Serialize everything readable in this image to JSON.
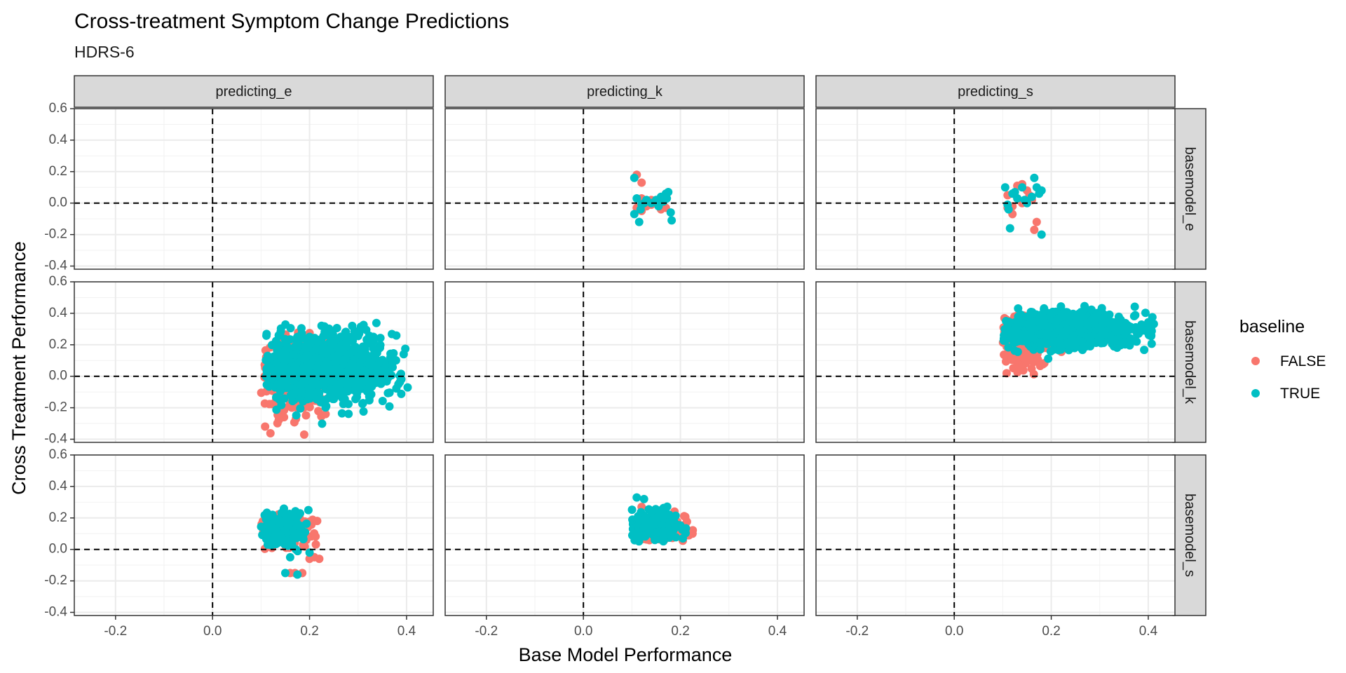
{
  "chart_data": {
    "type": "scatter",
    "title": "Cross-treatment Symptom Change Predictions",
    "subtitle": "HDRS-6",
    "xlabel": "Base Model Performance",
    "ylabel": "Cross Treatment Performance",
    "xlim": [
      -0.285,
      0.455
    ],
    "ylim": [
      -0.42,
      0.6
    ],
    "x_ticks": [
      -0.2,
      0.0,
      0.2,
      0.4
    ],
    "x_tick_labels": [
      "-0.2",
      "0.0",
      "0.2",
      "0.4"
    ],
    "y_ticks": [
      -0.4,
      -0.2,
      0.0,
      0.2,
      0.4,
      0.6
    ],
    "y_tick_labels": [
      "-0.4",
      "-0.2",
      "0.0",
      "0.2",
      "0.4",
      "0.6"
    ],
    "grid": true,
    "reference_lines": {
      "x": 0.0,
      "y": 0.0,
      "style": "dashed"
    },
    "facet_cols": [
      "predicting_e",
      "predicting_k",
      "predicting_s"
    ],
    "facet_rows": [
      "basemodel_e",
      "basemodel_k",
      "basemodel_s"
    ],
    "legend": {
      "title": "baseline",
      "position": "right",
      "entries": [
        {
          "label": "FALSE",
          "color": "#F8766D"
        },
        {
          "label": "TRUE",
          "color": "#00BFC4"
        }
      ]
    },
    "panels": [
      {
        "row": "basemodel_e",
        "col": "predicting_e",
        "points": []
      },
      {
        "row": "basemodel_e",
        "col": "predicting_k",
        "points": [
          [
            0.11,
            0.18,
            "FALSE"
          ],
          [
            0.12,
            0.13,
            "FALSE"
          ],
          [
            0.12,
            0.03,
            "FALSE"
          ],
          [
            0.13,
            0.01,
            "FALSE"
          ],
          [
            0.14,
            -0.01,
            "FALSE"
          ],
          [
            0.15,
            0.0,
            "FALSE"
          ],
          [
            0.16,
            -0.04,
            "FALSE"
          ],
          [
            0.13,
            -0.02,
            "FALSE"
          ],
          [
            0.11,
            -0.03,
            "FALSE"
          ],
          [
            0.17,
            -0.03,
            "FALSE"
          ],
          [
            0.14,
            0.02,
            "FALSE"
          ],
          [
            0.12,
            -0.05,
            "FALSE"
          ],
          [
            0.105,
            0.16,
            "TRUE"
          ],
          [
            0.11,
            0.03,
            "TRUE"
          ],
          [
            0.12,
            -0.01,
            "TRUE"
          ],
          [
            0.13,
            0.02,
            "TRUE"
          ],
          [
            0.14,
            0.0,
            "TRUE"
          ],
          [
            0.15,
            0.02,
            "TRUE"
          ],
          [
            0.16,
            0.04,
            "TRUE"
          ],
          [
            0.17,
            0.06,
            "TRUE"
          ],
          [
            0.175,
            0.07,
            "TRUE"
          ],
          [
            0.18,
            -0.06,
            "TRUE"
          ],
          [
            0.182,
            -0.11,
            "TRUE"
          ],
          [
            0.115,
            -0.12,
            "TRUE"
          ],
          [
            0.105,
            -0.07,
            "TRUE"
          ],
          [
            0.125,
            0.0,
            "TRUE"
          ],
          [
            0.165,
            0.01,
            "TRUE"
          ],
          [
            0.155,
            -0.02,
            "TRUE"
          ],
          [
            0.172,
            0.03,
            "TRUE"
          ],
          [
            0.118,
            -0.04,
            "TRUE"
          ]
        ]
      },
      {
        "row": "basemodel_e",
        "col": "predicting_s",
        "points": [
          [
            0.11,
            0.05,
            "FALSE"
          ],
          [
            0.12,
            -0.07,
            "FALSE"
          ],
          [
            0.13,
            0.11,
            "FALSE"
          ],
          [
            0.14,
            0.12,
            "FALSE"
          ],
          [
            0.15,
            0.08,
            "FALSE"
          ],
          [
            0.16,
            0.02,
            "FALSE"
          ],
          [
            0.17,
            -0.12,
            "FALSE"
          ],
          [
            0.12,
            -0.02,
            "FALSE"
          ],
          [
            0.13,
            0.03,
            "FALSE"
          ],
          [
            0.165,
            -0.17,
            "FALSE"
          ],
          [
            0.11,
            -0.03,
            "FALSE"
          ],
          [
            0.14,
            0.0,
            "FALSE"
          ],
          [
            0.155,
            0.05,
            "FALSE"
          ],
          [
            0.105,
            0.1,
            "TRUE"
          ],
          [
            0.11,
            -0.01,
            "TRUE"
          ],
          [
            0.115,
            -0.16,
            "TRUE"
          ],
          [
            0.12,
            0.06,
            "TRUE"
          ],
          [
            0.13,
            0.03,
            "TRUE"
          ],
          [
            0.14,
            0.1,
            "TRUE"
          ],
          [
            0.15,
            0.0,
            "TRUE"
          ],
          [
            0.16,
            0.04,
            "TRUE"
          ],
          [
            0.165,
            0.16,
            "TRUE"
          ],
          [
            0.17,
            0.1,
            "TRUE"
          ],
          [
            0.18,
            0.08,
            "TRUE"
          ],
          [
            0.18,
            -0.2,
            "TRUE"
          ],
          [
            0.125,
            0.07,
            "TRUE"
          ],
          [
            0.145,
            0.02,
            "TRUE"
          ],
          [
            0.112,
            -0.04,
            "TRUE"
          ],
          [
            0.175,
            0.06,
            "TRUE"
          ]
        ]
      },
      {
        "row": "basemodel_k",
        "col": "predicting_e",
        "points": [],
        "clouds": [
          {
            "group": "FALSE",
            "count": 300,
            "x": [
              0.1,
              0.33
            ],
            "y": [
              -0.38,
              0.28
            ],
            "center": [
              0.16,
              0.0
            ],
            "spread": [
              0.035,
              0.14
            ]
          },
          {
            "group": "TRUE",
            "count": 900,
            "x": [
              0.11,
              0.42
            ],
            "y": [
              -0.38,
              0.34
            ],
            "center": [
              0.24,
              0.06
            ],
            "spread": [
              0.07,
              0.11
            ]
          }
        ]
      },
      {
        "row": "basemodel_k",
        "col": "predicting_k",
        "points": []
      },
      {
        "row": "basemodel_k",
        "col": "predicting_s",
        "points": [],
        "clouds": [
          {
            "group": "FALSE",
            "count": 300,
            "x": [
              0.1,
              0.28
            ],
            "y": [
              -0.02,
              0.42
            ],
            "center": [
              0.14,
              0.22
            ],
            "spread": [
              0.03,
              0.08
            ]
          },
          {
            "group": "TRUE",
            "count": 1000,
            "x": [
              0.1,
              0.42
            ],
            "y": [
              0.0,
              0.56
            ],
            "center": [
              0.23,
              0.29
            ],
            "spread": [
              0.075,
              0.055
            ]
          }
        ]
      },
      {
        "row": "basemodel_s",
        "col": "predicting_e",
        "points": [
          [
            0.16,
            -0.15,
            "FALSE"
          ],
          [
            0.17,
            -0.15,
            "FALSE"
          ],
          [
            0.185,
            -0.15,
            "FALSE"
          ],
          [
            0.2,
            -0.06,
            "FALSE"
          ],
          [
            0.22,
            -0.06,
            "FALSE"
          ],
          [
            0.21,
            -0.05,
            "FALSE"
          ],
          [
            0.15,
            -0.15,
            "TRUE"
          ],
          [
            0.175,
            -0.16,
            "TRUE"
          ],
          [
            0.16,
            -0.05,
            "TRUE"
          ],
          [
            0.2,
            -0.02,
            "TRUE"
          ]
        ],
        "clouds": [
          {
            "group": "FALSE",
            "count": 110,
            "x": [
              0.1,
              0.22
            ],
            "y": [
              -0.02,
              0.27
            ],
            "center": [
              0.15,
              0.12
            ],
            "spread": [
              0.03,
              0.06
            ]
          },
          {
            "group": "TRUE",
            "count": 170,
            "x": [
              0.1,
              0.21
            ],
            "y": [
              -0.02,
              0.28
            ],
            "center": [
              0.14,
              0.13
            ],
            "spread": [
              0.025,
              0.06
            ]
          }
        ]
      },
      {
        "row": "basemodel_s",
        "col": "predicting_k",
        "points": [
          [
            0.225,
            0.1,
            "FALSE"
          ],
          [
            0.215,
            0.09,
            "FALSE"
          ],
          [
            0.12,
            0.27,
            "FALSE"
          ],
          [
            0.11,
            0.33,
            "TRUE"
          ],
          [
            0.125,
            0.32,
            "TRUE"
          ],
          [
            0.205,
            0.07,
            "TRUE"
          ]
        ],
        "clouds": [
          {
            "group": "FALSE",
            "count": 120,
            "x": [
              0.1,
              0.23
            ],
            "y": [
              0.05,
              0.28
            ],
            "center": [
              0.15,
              0.12
            ],
            "spread": [
              0.03,
              0.04
            ]
          },
          {
            "group": "TRUE",
            "count": 220,
            "x": [
              0.1,
              0.22
            ],
            "y": [
              0.05,
              0.33
            ],
            "center": [
              0.14,
              0.14
            ],
            "spread": [
              0.03,
              0.05
            ]
          }
        ]
      },
      {
        "row": "basemodel_s",
        "col": "predicting_s",
        "points": []
      }
    ]
  }
}
